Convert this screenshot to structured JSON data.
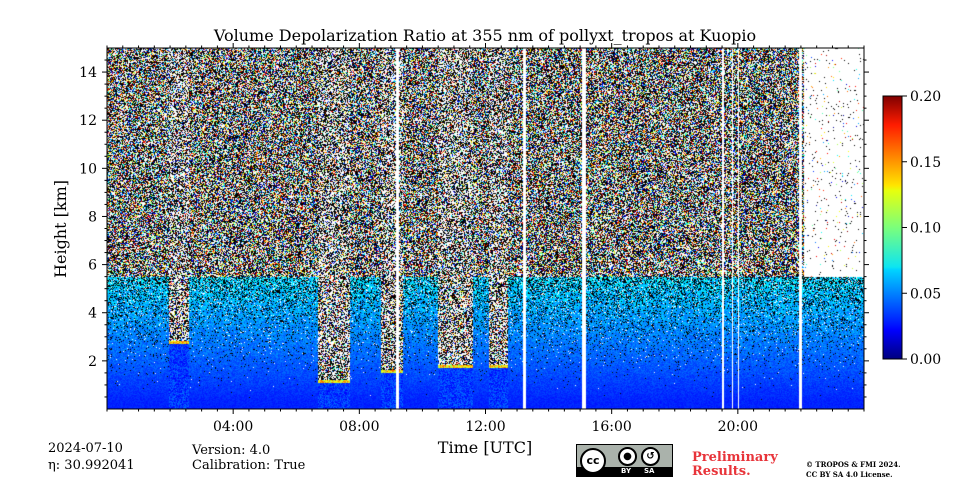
{
  "chart_data": {
    "type": "heatmap",
    "title": "Volume Depolarization Ratio at 355 nm of pollyxt_tropos at Kuopio",
    "xlabel": "Time [UTC]",
    "ylabel": "Height [km]",
    "x_range_hours": [
      0,
      24
    ],
    "ylim_km": [
      0,
      15
    ],
    "x_ticks": [
      {
        "hour": 4,
        "label": "04:00"
      },
      {
        "hour": 8,
        "label": "08:00"
      },
      {
        "hour": 12,
        "label": "12:00"
      },
      {
        "hour": 16,
        "label": "16:00"
      },
      {
        "hour": 20,
        "label": "20:00"
      }
    ],
    "y_ticks": [
      {
        "km": 2,
        "label": "2"
      },
      {
        "km": 4,
        "label": "4"
      },
      {
        "km": 6,
        "label": "6"
      },
      {
        "km": 8,
        "label": "8"
      },
      {
        "km": 10,
        "label": "10"
      },
      {
        "km": 12,
        "label": "12"
      },
      {
        "km": 14,
        "label": "14"
      }
    ],
    "colorbar": {
      "colormap": "jet",
      "range": [
        0.0,
        0.2
      ],
      "ticks": [
        {
          "value": 0.0,
          "label": "0.00"
        },
        {
          "value": 0.05,
          "label": "0.05"
        },
        {
          "value": 0.1,
          "label": "0.10"
        },
        {
          "value": 0.15,
          "label": "0.15"
        },
        {
          "value": 0.2,
          "label": "0.20"
        }
      ]
    },
    "missing_data_gaps_hours": [
      [
        9.15,
        9.25
      ],
      [
        13.2,
        13.27
      ],
      [
        15.05,
        15.2
      ],
      [
        19.5,
        19.55
      ],
      [
        19.8,
        19.85
      ],
      [
        20.0,
        20.05
      ],
      [
        21.95,
        22.05
      ]
    ],
    "low_cloud_periods": [
      {
        "start": 1.95,
        "end": 2.6,
        "base_km": 2.7
      },
      {
        "start": 6.7,
        "end": 7.7,
        "base_km": 1.1
      },
      {
        "start": 8.7,
        "end": 9.4,
        "base_km": 1.5
      },
      {
        "start": 10.5,
        "end": 11.6,
        "base_km": 1.7
      },
      {
        "start": 12.1,
        "end": 12.7,
        "base_km": 1.7
      }
    ],
    "boundary_layer_top_km": 5.5
  },
  "footer": {
    "date": "2024-07-10",
    "eta": "η: 30.992041",
    "version": "Version: 4.0",
    "calibration": "Calibration: True",
    "preliminary_line1": "Preliminary",
    "preliminary_line2": "Results.",
    "copyright_line1": "© TROPOS & FMI 2024.",
    "copyright_line2": "CC BY SA 4.0 License.",
    "license_badge": {
      "cc": "cc",
      "by": "BY",
      "sa": "SA"
    }
  }
}
